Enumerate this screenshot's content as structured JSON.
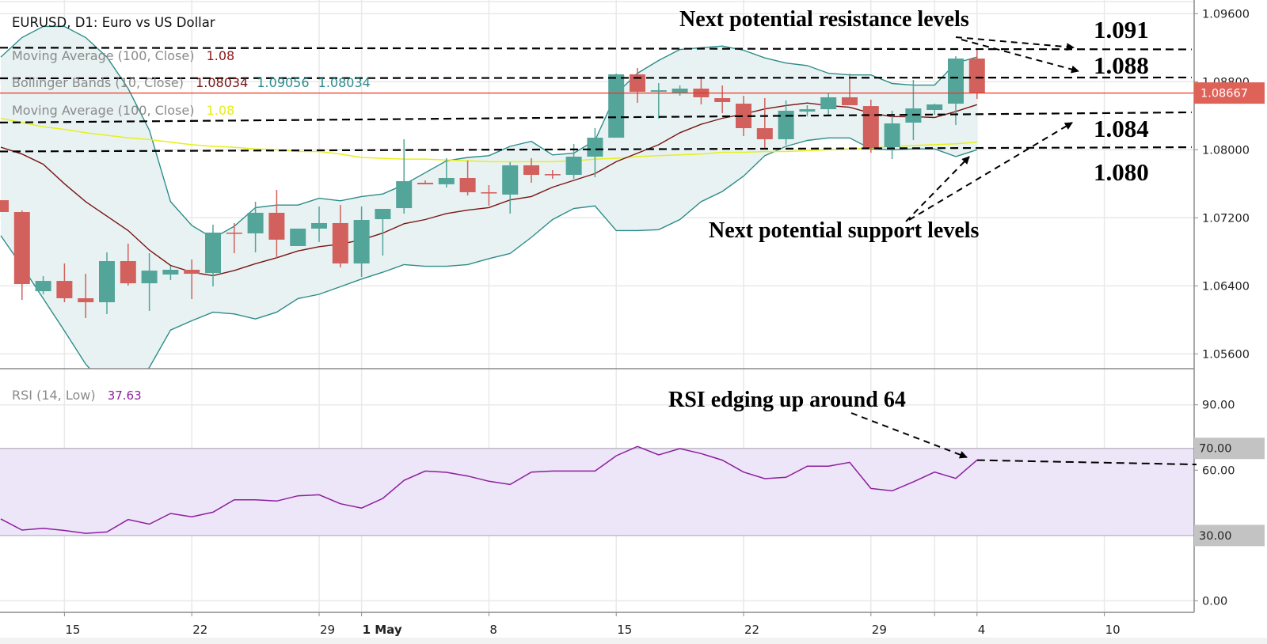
{
  "header": {
    "title": "EURUSD, D1: Euro vs US Dollar"
  },
  "legend": [
    {
      "label": "Moving Average (100, Close)",
      "values": [
        "1.08"
      ]
    },
    {
      "label": "Bollinger Bands (10, Close)",
      "values": [
        "1.08034",
        "1.09056",
        "1.08034"
      ]
    },
    {
      "label": "Moving Average (100, Close)",
      "values": [
        "1.08"
      ]
    }
  ],
  "rsi_legend": {
    "label": "RSI (14, Low)",
    "value": "37.63"
  },
  "annotations": {
    "resistance_text": "Next potential resistance levels",
    "support_text": "Next potential support levels",
    "rsi_text": "RSI edging up around 64",
    "levels": [
      "1.091",
      "1.088",
      "1.084",
      "1.080"
    ]
  },
  "colors": {
    "up": "#53a59a",
    "down": "#d2605d",
    "bb_band": "#2c8c8a",
    "bb_fill": "#e8f2f2",
    "bb_middle": "#7a1414",
    "ma100": "#e6ef1c",
    "last_price": "#ef3323",
    "rsi_line": "#8c1f9e",
    "rsi_fill": "#ede5f8",
    "grid": "#e9e9e9",
    "axis": "#8c8c8c"
  },
  "chart_data": [
    {
      "type": "candlestick",
      "title": "EURUSD, D1: Euro vs US Dollar",
      "ylim": [
        1.05426,
        1.09761
      ],
      "grid": true,
      "y_ticks": [
        "1.09600",
        "1.08800",
        "1.08000",
        "1.07200",
        "1.06400",
        "1.05600"
      ],
      "y_tick_values": [
        1.096,
        1.088,
        1.08,
        1.072,
        1.064,
        1.056
      ],
      "x_ticks": [
        {
          "label": "15",
          "bar": 3
        },
        {
          "label": "22",
          "bar": 9
        },
        {
          "label": "29",
          "bar": 15
        },
        {
          "label": "1 May",
          "bar": 17,
          "bold": true
        },
        {
          "label": "8",
          "bar": 23
        },
        {
          "label": "15",
          "bar": 29
        },
        {
          "label": "22",
          "bar": 35
        },
        {
          "label": "29",
          "bar": 41
        },
        {
          "label": "",
          "bar": 44
        },
        {
          "label": "4",
          "bar": 46
        },
        {
          "label": "10",
          "bar": 52
        }
      ],
      "last_price": {
        "value": 1.08667,
        "label": "1.08667"
      },
      "ohlc": [
        [
          1.07407,
          1.07407,
          1.07268,
          1.07268
        ],
        [
          1.07268,
          1.07287,
          1.06235,
          1.06421
        ],
        [
          1.06337,
          1.06514,
          1.063,
          1.06458
        ],
        [
          1.06458,
          1.06663,
          1.06207,
          1.06254
        ],
        [
          1.06254,
          1.06542,
          1.06021,
          1.06207
        ],
        [
          1.06207,
          1.06794,
          1.06068,
          1.06691
        ],
        [
          1.06691,
          1.06896,
          1.06403,
          1.0643
        ],
        [
          1.0643,
          1.06784,
          1.06105,
          1.06579
        ],
        [
          1.06533,
          1.06635,
          1.06468,
          1.06589
        ],
        [
          1.06589,
          1.0671,
          1.06244,
          1.06542
        ],
        [
          1.06551,
          1.07119,
          1.06393,
          1.07026
        ],
        [
          1.07026,
          1.07138,
          1.06784,
          1.07017
        ],
        [
          1.07017,
          1.07389,
          1.06794,
          1.07259
        ],
        [
          1.07259,
          1.07528,
          1.06728,
          1.06943
        ],
        [
          1.06868,
          1.07073,
          1.06868,
          1.07073
        ],
        [
          1.07073,
          1.07333,
          1.06915,
          1.07138
        ],
        [
          1.07138,
          1.07352,
          1.06617,
          1.06663
        ],
        [
          1.06663,
          1.07333,
          1.06505,
          1.07175
        ],
        [
          1.07184,
          1.07305,
          1.06756,
          1.07305
        ],
        [
          1.07314,
          1.08124,
          1.07249,
          1.07631
        ],
        [
          1.07612,
          1.0764,
          1.07594,
          1.07594
        ],
        [
          1.07594,
          1.079,
          1.07556,
          1.07668
        ],
        [
          1.07668,
          1.07873,
          1.07463,
          1.07501
        ],
        [
          1.07501,
          1.07584,
          1.07342,
          1.07491
        ],
        [
          1.07473,
          1.07854,
          1.07249,
          1.07817
        ],
        [
          1.07817,
          1.079,
          1.07612,
          1.07705
        ],
        [
          1.07714,
          1.07761,
          1.07659,
          1.07705
        ],
        [
          1.07705,
          1.08068,
          1.07659,
          1.07919
        ],
        [
          1.07919,
          1.08254,
          1.07677,
          1.08142
        ],
        [
          1.08142,
          1.08896,
          1.08142,
          1.08887
        ],
        [
          1.08887,
          1.08961,
          1.08552,
          1.08682
        ],
        [
          1.08682,
          1.08784,
          1.08366,
          1.087
        ],
        [
          1.08673,
          1.08756,
          1.08635,
          1.08719
        ],
        [
          1.08719,
          1.08859,
          1.08533,
          1.08617
        ],
        [
          1.08607,
          1.08756,
          1.08431,
          1.08561
        ],
        [
          1.08542,
          1.08635,
          1.08161,
          1.08254
        ],
        [
          1.08254,
          1.08607,
          1.08021,
          1.08124
        ],
        [
          1.08124,
          1.0858,
          1.08059,
          1.08459
        ],
        [
          1.08449,
          1.08524,
          1.08393,
          1.08477
        ],
        [
          1.08477,
          1.08673,
          1.08393,
          1.08617
        ],
        [
          1.08617,
          1.08896,
          1.08524,
          1.08524
        ],
        [
          1.08514,
          1.08589,
          1.07966,
          1.08021
        ],
        [
          1.08031,
          1.08459,
          1.07891,
          1.0831
        ],
        [
          1.08319,
          1.08821,
          1.08114,
          1.08486
        ],
        [
          1.08468,
          1.08542,
          1.08412,
          1.08533
        ],
        [
          1.08542,
          1.091,
          1.08291,
          1.09073
        ],
        [
          1.09073,
          1.09175,
          1.08598,
          1.08667
        ]
      ],
      "bb_upper": [
        1.0909,
        1.0932,
        1.0945,
        1.0945,
        1.0932,
        1.0909,
        1.0872,
        1.0823,
        1.0739,
        1.0711,
        1.0696,
        1.071,
        1.0732,
        1.0735,
        1.0735,
        1.0743,
        1.074,
        1.0745,
        1.0748,
        1.0759,
        1.0773,
        1.0787,
        1.0791,
        1.0793,
        1.0804,
        1.081,
        1.0794,
        1.0796,
        1.0811,
        1.0866,
        1.089,
        1.0905,
        1.0918,
        1.092,
        1.0922,
        1.0917,
        1.0908,
        1.0902,
        1.0899,
        1.089,
        1.0888,
        1.0888,
        1.0878,
        1.0876,
        1.0876,
        1.0902,
        1.0909
      ],
      "bb_middle": [
        1.0803,
        1.0795,
        1.0783,
        1.076,
        1.0739,
        1.0722,
        1.0705,
        1.0682,
        1.0664,
        1.0656,
        1.0652,
        1.0658,
        1.0666,
        1.0673,
        1.0681,
        1.0686,
        1.0689,
        1.0694,
        1.0702,
        1.0713,
        1.0718,
        1.0725,
        1.0729,
        1.0732,
        1.0741,
        1.0745,
        1.0756,
        1.0764,
        1.0772,
        1.0786,
        1.0796,
        1.0806,
        1.082,
        1.083,
        1.0837,
        1.0842,
        1.0848,
        1.0852,
        1.0855,
        1.0852,
        1.085,
        1.0843,
        1.0839,
        1.0839,
        1.0838,
        1.0845,
        1.0853
      ],
      "bb_lower": [
        1.0699,
        1.0663,
        1.0625,
        1.0587,
        1.0548,
        1.052,
        1.0518,
        1.0544,
        1.0588,
        1.0599,
        1.0609,
        1.0607,
        1.0601,
        1.0609,
        1.0625,
        1.063,
        1.0639,
        1.0648,
        1.0656,
        1.0665,
        1.0663,
        1.0663,
        1.0665,
        1.0672,
        1.0678,
        1.0697,
        1.0718,
        1.0731,
        1.0734,
        1.0705,
        1.0705,
        1.0706,
        1.0718,
        1.0739,
        1.0751,
        1.0769,
        1.0793,
        1.0804,
        1.0811,
        1.0814,
        1.0814,
        1.0801,
        1.08,
        1.0801,
        1.0801,
        1.0792,
        1.08
      ],
      "ma100": [
        1.0837,
        1.0832,
        1.0827,
        1.0824,
        1.082,
        1.0817,
        1.0814,
        1.0812,
        1.0809,
        1.0806,
        1.0804,
        1.0803,
        1.0801,
        1.08,
        1.0798,
        1.0798,
        1.0795,
        1.0791,
        1.079,
        1.0789,
        1.0789,
        1.0788,
        1.0787,
        1.0786,
        1.0786,
        1.0786,
        1.0786,
        1.0787,
        1.0789,
        1.079,
        1.0792,
        1.0793,
        1.0794,
        1.0795,
        1.0797,
        1.0797,
        1.0798,
        1.0798,
        1.0799,
        1.08,
        1.0801,
        1.0802,
        1.0804,
        1.0805,
        1.0806,
        1.0807,
        1.0809
      ],
      "dashed_levels": [
        {
          "start": 1.092,
          "end": 1.0918
        },
        {
          "start": 1.0884,
          "end": 1.0885
        },
        {
          "start": 1.0832,
          "end": 1.0844
        },
        {
          "start": 1.0798,
          "end": 1.0803
        }
      ],
      "dashed_levels_bar_range": [
        0,
        56
      ]
    },
    {
      "type": "line",
      "title": "RSI (14, Low)",
      "ylim": [
        -5.3,
        106.6
      ],
      "grid": true,
      "y_ticks": [
        "90.00",
        "70.00",
        "60.00",
        "30.00",
        "0.00"
      ],
      "y_tick_values": [
        90,
        70,
        60,
        30,
        0
      ],
      "highlighted_ticks": [
        "70.00",
        "30.00"
      ],
      "band": [
        30,
        70
      ],
      "values": [
        37.6,
        32.5,
        33.3,
        32.3,
        31.0,
        31.6,
        37.3,
        35.2,
        40.1,
        38.6,
        40.7,
        46.4,
        46.4,
        45.8,
        48.2,
        48.7,
        44.6,
        42.6,
        47.0,
        55.3,
        59.6,
        59.0,
        57.3,
        54.9,
        53.4,
        59.1,
        59.6,
        59.6,
        59.6,
        66.6,
        70.9,
        67.0,
        69.9,
        67.6,
        64.6,
        59.1,
        56.1,
        56.7,
        61.8,
        61.8,
        63.6,
        51.6,
        50.5,
        54.6,
        59.1,
        56.2,
        64.6
      ],
      "dashed_level": {
        "start": 64.6,
        "end": 62.6
      }
    }
  ]
}
